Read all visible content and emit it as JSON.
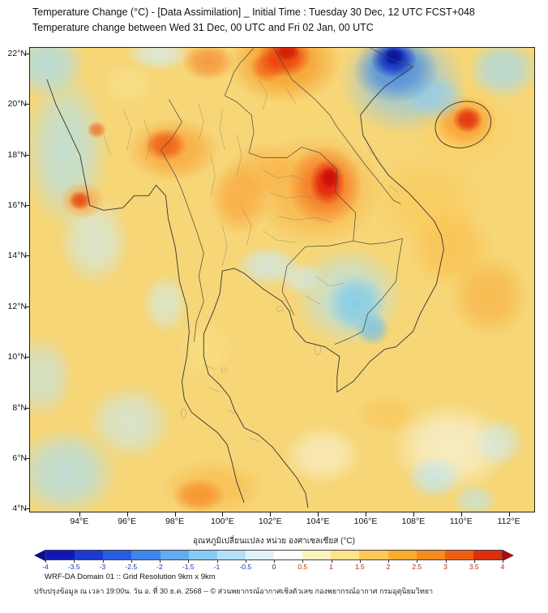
{
  "header": {
    "title_line1": "Temperature Change (°C) - [Data Assimilation] _ Initial Time : Tuesday 30 Dec, 12 UTC FCST+048",
    "title_line2": "Temperature change between Wed 31 Dec, 00 UTC and Fri 02 Jan, 00 UTC"
  },
  "map": {
    "lon_range": [
      91.9,
      113.1
    ],
    "lat_range": [
      3.85,
      22.25
    ],
    "base_color": "#f6d677",
    "lat_ticks": [
      {
        "value": 22,
        "label": "22°N"
      },
      {
        "value": 20,
        "label": "20°N"
      },
      {
        "value": 18,
        "label": "18°N"
      },
      {
        "value": 16,
        "label": "16°N"
      },
      {
        "value": 14,
        "label": "14°N"
      },
      {
        "value": 12,
        "label": "12°N"
      },
      {
        "value": 10,
        "label": "10°N"
      },
      {
        "value": 8,
        "label": "8°N"
      },
      {
        "value": 6,
        "label": "6°N"
      },
      {
        "value": 4,
        "label": "4°N"
      }
    ],
    "lon_ticks": [
      {
        "value": 94,
        "label": "94°E"
      },
      {
        "value": 96,
        "label": "96°E"
      },
      {
        "value": 98,
        "label": "98°E"
      },
      {
        "value": 100,
        "label": "100°E"
      },
      {
        "value": 102,
        "label": "102°E"
      },
      {
        "value": 104,
        "label": "104°E"
      },
      {
        "value": 106,
        "label": "106°E"
      },
      {
        "value": 108,
        "label": "108°E"
      },
      {
        "value": 110,
        "label": "110°E"
      },
      {
        "value": 112,
        "label": "112°E"
      }
    ],
    "blobs": [
      {
        "lon": 102.7,
        "lat": 22.1,
        "rx": 0.7,
        "ry": 0.5,
        "rgb": [
          205,
          25,
          8
        ],
        "a": 0.9
      },
      {
        "lon": 102.6,
        "lat": 21.9,
        "rx": 1.5,
        "ry": 1.1,
        "rgb": [
          232,
          55,
          10
        ],
        "a": 0.9
      },
      {
        "lon": 101.9,
        "lat": 21.5,
        "rx": 1.0,
        "ry": 0.8,
        "rgb": [
          240,
          90,
          20
        ],
        "a": 0.75
      },
      {
        "lon": 102.6,
        "lat": 21.7,
        "rx": 3.2,
        "ry": 2.2,
        "rgb": [
          247,
          148,
          30
        ],
        "a": 0.8
      },
      {
        "lon": 99.4,
        "lat": 21.7,
        "rx": 1.5,
        "ry": 1.0,
        "rgb": [
          246,
          130,
          40
        ],
        "a": 0.7
      },
      {
        "lon": 107.2,
        "lat": 21.9,
        "rx": 0.6,
        "ry": 0.5,
        "rgb": [
          8,
          18,
          150
        ],
        "a": 0.95
      },
      {
        "lon": 107.2,
        "lat": 21.8,
        "rx": 1.3,
        "ry": 1.0,
        "rgb": [
          15,
          45,
          190
        ],
        "a": 0.95
      },
      {
        "lon": 107.3,
        "lat": 21.4,
        "rx": 2.4,
        "ry": 1.8,
        "rgb": [
          60,
          130,
          225
        ],
        "a": 0.8
      },
      {
        "lon": 107.6,
        "lat": 20.9,
        "rx": 3.6,
        "ry": 2.8,
        "rgb": [
          135,
          198,
          240
        ],
        "a": 0.7
      },
      {
        "lon": 108.9,
        "lat": 20.3,
        "rx": 1.8,
        "ry": 1.2,
        "rgb": [
          150,
          212,
          240
        ],
        "a": 0.7
      },
      {
        "lon": 110.3,
        "lat": 19.4,
        "rx": 0.85,
        "ry": 0.7,
        "rgb": [
          225,
          40,
          12
        ],
        "a": 0.9
      },
      {
        "lon": 110.2,
        "lat": 19.3,
        "rx": 1.8,
        "ry": 1.4,
        "rgb": [
          248,
          150,
          40
        ],
        "a": 0.8
      },
      {
        "lon": 110.1,
        "lat": 19.1,
        "rx": 3.0,
        "ry": 2.3,
        "rgb": [
          252,
          205,
          95
        ],
        "a": 0.75
      },
      {
        "lon": 111.8,
        "lat": 21.4,
        "rx": 2.0,
        "ry": 1.6,
        "rgb": [
          160,
          218,
          242
        ],
        "a": 0.75
      },
      {
        "lon": 92.6,
        "lat": 21.6,
        "rx": 2.2,
        "ry": 1.8,
        "rgb": [
          165,
          222,
          244
        ],
        "a": 0.75
      },
      {
        "lon": 97.3,
        "lat": 22.0,
        "rx": 1.8,
        "ry": 0.9,
        "rgb": [
          210,
          238,
          248
        ],
        "a": 0.7
      },
      {
        "lon": 94.0,
        "lat": 16.2,
        "rx": 0.65,
        "ry": 0.5,
        "rgb": [
          230,
          70,
          15
        ],
        "a": 0.9
      },
      {
        "lon": 94.1,
        "lat": 16.2,
        "rx": 1.3,
        "ry": 1.0,
        "rgb": [
          250,
          160,
          60
        ],
        "a": 0.7
      },
      {
        "lon": 94.7,
        "lat": 19.0,
        "rx": 0.55,
        "ry": 0.45,
        "rgb": [
          238,
          100,
          25
        ],
        "a": 0.75
      },
      {
        "lon": 93.4,
        "lat": 18.2,
        "rx": 2.4,
        "ry": 4.2,
        "rgb": [
          175,
          226,
          245
        ],
        "a": 0.7
      },
      {
        "lon": 94.6,
        "lat": 14.6,
        "rx": 2.0,
        "ry": 2.4,
        "rgb": [
          205,
          236,
          248
        ],
        "a": 0.65
      },
      {
        "lon": 97.6,
        "lat": 18.4,
        "rx": 1.2,
        "ry": 0.85,
        "rgb": [
          238,
          85,
          18
        ],
        "a": 0.85
      },
      {
        "lon": 97.9,
        "lat": 18.2,
        "rx": 2.6,
        "ry": 1.7,
        "rgb": [
          249,
          158,
          50
        ],
        "a": 0.75
      },
      {
        "lon": 104.5,
        "lat": 17.1,
        "rx": 0.55,
        "ry": 0.6,
        "rgb": [
          198,
          12,
          8
        ],
        "a": 0.9
      },
      {
        "lon": 104.4,
        "lat": 16.9,
        "rx": 1.0,
        "ry": 1.2,
        "rgb": [
          222,
          25,
          10
        ],
        "a": 0.92
      },
      {
        "lon": 104.3,
        "lat": 16.8,
        "rx": 2.1,
        "ry": 2.1,
        "rgb": [
          243,
          105,
          25
        ],
        "a": 0.8
      },
      {
        "lon": 103.9,
        "lat": 16.6,
        "rx": 3.8,
        "ry": 3.0,
        "rgb": [
          250,
          170,
          60
        ],
        "a": 0.7
      },
      {
        "lon": 100.7,
        "lat": 16.3,
        "rx": 1.7,
        "ry": 2.0,
        "rgb": [
          249,
          160,
          55
        ],
        "a": 0.7
      },
      {
        "lon": 101.7,
        "lat": 17.4,
        "rx": 2.0,
        "ry": 1.5,
        "rgb": [
          250,
          175,
          70
        ],
        "a": 0.6
      },
      {
        "lon": 109.6,
        "lat": 14.3,
        "rx": 2.4,
        "ry": 2.2,
        "rgb": [
          251,
          190,
          75
        ],
        "a": 0.7
      },
      {
        "lon": 111.2,
        "lat": 12.4,
        "rx": 2.2,
        "ry": 2.2,
        "rgb": [
          249,
          172,
          62
        ],
        "a": 0.65
      },
      {
        "lon": 108.6,
        "lat": 16.2,
        "rx": 3.2,
        "ry": 2.6,
        "rgb": [
          250,
          200,
          85
        ],
        "a": 0.6
      },
      {
        "lon": 105.6,
        "lat": 12.1,
        "rx": 1.7,
        "ry": 1.6,
        "rgb": [
          125,
          203,
          235
        ],
        "a": 0.85
      },
      {
        "lon": 106.3,
        "lat": 11.1,
        "rx": 1.0,
        "ry": 0.9,
        "rgb": [
          110,
          192,
          232
        ],
        "a": 0.75
      },
      {
        "lon": 105.3,
        "lat": 12.4,
        "rx": 3.1,
        "ry": 2.7,
        "rgb": [
          180,
          228,
          245
        ],
        "a": 0.7
      },
      {
        "lon": 101.9,
        "lat": 13.6,
        "rx": 1.8,
        "ry": 1.1,
        "rgb": [
          200,
          235,
          248
        ],
        "a": 0.7
      },
      {
        "lon": 103.3,
        "lat": 13.1,
        "rx": 1.3,
        "ry": 0.9,
        "rgb": [
          205,
          238,
          249
        ],
        "a": 0.6
      },
      {
        "lon": 97.6,
        "lat": 12.1,
        "rx": 1.3,
        "ry": 1.6,
        "rgb": [
          205,
          238,
          249
        ],
        "a": 0.6
      },
      {
        "lon": 93.4,
        "lat": 5.4,
        "rx": 3.0,
        "ry": 2.4,
        "rgb": [
          172,
          224,
          244
        ],
        "a": 0.75
      },
      {
        "lon": 96.1,
        "lat": 7.4,
        "rx": 2.4,
        "ry": 2.0,
        "rgb": [
          200,
          235,
          248
        ],
        "a": 0.65
      },
      {
        "lon": 92.4,
        "lat": 9.2,
        "rx": 1.8,
        "ry": 2.2,
        "rgb": [
          190,
          231,
          246
        ],
        "a": 0.6
      },
      {
        "lon": 99.0,
        "lat": 4.5,
        "rx": 1.5,
        "ry": 0.9,
        "rgb": [
          246,
          138,
          38
        ],
        "a": 0.8
      },
      {
        "lon": 99.6,
        "lat": 4.8,
        "rx": 3.0,
        "ry": 1.5,
        "rgb": [
          250,
          185,
          75
        ],
        "a": 0.7
      },
      {
        "lon": 108.9,
        "lat": 5.2,
        "rx": 1.6,
        "ry": 1.2,
        "rgb": [
          190,
          231,
          246
        ],
        "a": 0.7
      },
      {
        "lon": 111.6,
        "lat": 6.6,
        "rx": 1.5,
        "ry": 1.3,
        "rgb": [
          200,
          235,
          248
        ],
        "a": 0.6
      },
      {
        "lon": 110.6,
        "lat": 4.3,
        "rx": 1.3,
        "ry": 0.9,
        "rgb": [
          188,
          230,
          245
        ],
        "a": 0.6
      },
      {
        "lon": 106.9,
        "lat": 7.7,
        "rx": 1.8,
        "ry": 1.1,
        "rgb": [
          250,
          195,
          85
        ],
        "a": 0.6
      },
      {
        "lon": 109.6,
        "lat": 6.4,
        "rx": 3.4,
        "ry": 2.4,
        "rgb": [
          248,
          246,
          228
        ],
        "a": 0.7
      },
      {
        "lon": 104.2,
        "lat": 6.1,
        "rx": 2.2,
        "ry": 1.6,
        "rgb": [
          250,
          247,
          230
        ],
        "a": 0.55
      },
      {
        "lon": 99.3,
        "lat": 10.3,
        "rx": 1.6,
        "ry": 1.6,
        "rgb": [
          252,
          228,
          140
        ],
        "a": 0.5
      },
      {
        "lon": 103.0,
        "lat": 19.8,
        "rx": 2.2,
        "ry": 1.6,
        "rgb": [
          252,
          215,
          110
        ],
        "a": 0.5
      },
      {
        "lon": 96.0,
        "lat": 20.8,
        "rx": 1.6,
        "ry": 1.2,
        "rgb": [
          250,
          230,
          150
        ],
        "a": 0.5
      }
    ]
  },
  "colorbar": {
    "label": "อุณหภูมิเปลี่ยนแปลง หน่วย องศาเซลเซียส (°C)",
    "ticks": [
      "-4",
      "-3.5",
      "-3",
      "-2.5",
      "-2",
      "-1.5",
      "-1",
      "-0.5",
      "0",
      "0.5",
      "1",
      "1.5",
      "2",
      "2.5",
      "3",
      "3.5",
      "4"
    ],
    "segment_colors": [
      "#1217b4",
      "#1c3ad2",
      "#2a5ce2",
      "#3f86ec",
      "#63acf1",
      "#8ccaf4",
      "#b4e0f7",
      "#dff2fb",
      "#ffffff",
      "#fdf3c0",
      "#fde38a",
      "#fcc957",
      "#fbab2e",
      "#f68b1f",
      "#ee5f13",
      "#dc2f0e"
    ],
    "arrow_left_color": "#0a0f86",
    "arrow_right_color": "#a60d0d",
    "negative_label_color": "#1d2fae",
    "positive_label_color": "#c5230e",
    "zero_label_color": "#333333"
  },
  "footer": {
    "line1": "WRF-DA Domain 01 :: Grid Resolution 9km x 9km",
    "line2": "ปรับปรุงข้อมูล ณ เวลา 19:00น. วัน อ. ที่ 30 ธ.ค. 2568 -- © ส่วนพยากรณ์อากาศเชิงตัวเลข กองพยากรณ์อากาศ กรมอุตุนิยมวิทยา"
  }
}
